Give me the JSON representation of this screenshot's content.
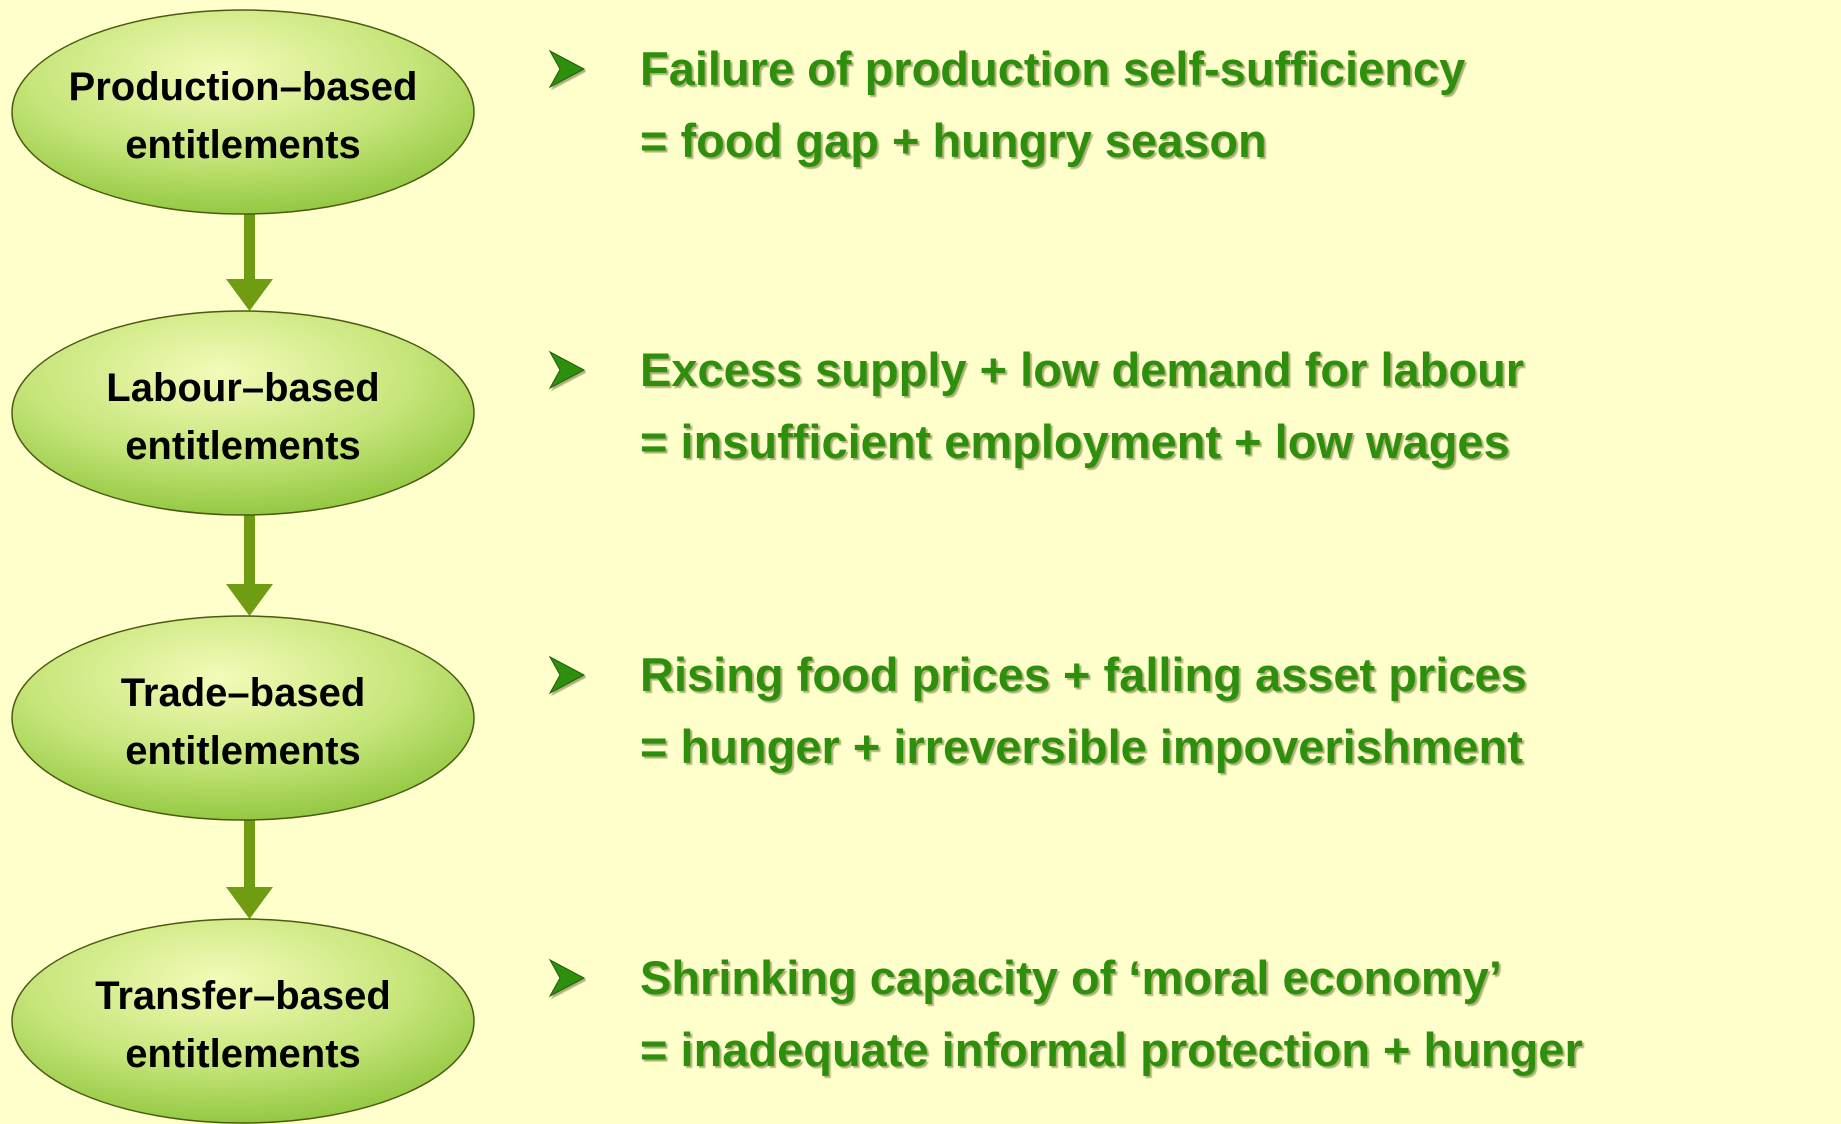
{
  "rows": [
    {
      "node": [
        "Production–based",
        "entitlements"
      ],
      "bullet": [
        "Failure of production self-sufficiency",
        "= food gap + hungry season"
      ]
    },
    {
      "node": [
        "Labour–based",
        "entitlements"
      ],
      "bullet": [
        "Excess supply + low demand for labour",
        "= insufficient employment + low wages"
      ]
    },
    {
      "node": [
        "Trade–based",
        "entitlements"
      ],
      "bullet": [
        "Rising food prices + falling asset prices",
        "= hunger + irreversible impoverishment"
      ]
    },
    {
      "node": [
        "Transfer–based",
        "entitlements"
      ],
      "bullet": [
        "Shrinking capacity of ‘moral economy’",
        "= inadequate informal protection + hunger"
      ]
    }
  ]
}
